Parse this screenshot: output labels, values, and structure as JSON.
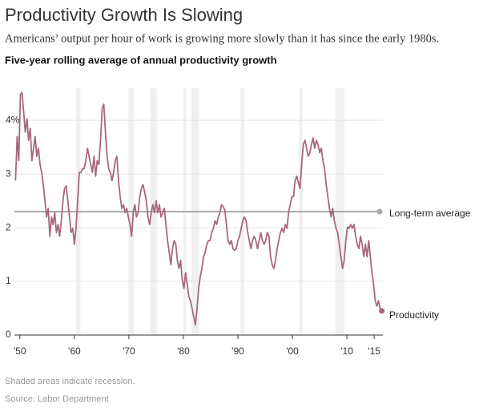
{
  "chart_data": {
    "type": "line",
    "title": "Productivity Growth Is Slowing",
    "subtitle": "Americans’ output per hour of work is growing more slowly than it has since the early 1980s.",
    "chart_label": "Five-year rolling average of annual productivity growth",
    "note": "Shaded areas indicate recession.",
    "source": "Source: Labor Department",
    "xlim": [
      1949,
      2016.6
    ],
    "ylim": [
      0,
      4.6
    ],
    "xticks": [
      {
        "value": 1950,
        "label": "'50"
      },
      {
        "value": 1960,
        "label": "'60"
      },
      {
        "value": 1970,
        "label": "'70"
      },
      {
        "value": 1980,
        "label": "'80"
      },
      {
        "value": 1990,
        "label": "'90"
      },
      {
        "value": 2000,
        "label": "'00"
      },
      {
        "value": 2010,
        "label": "'10"
      },
      {
        "value": 2015,
        "label": "'15"
      }
    ],
    "yticks": [
      0,
      1,
      2,
      3,
      {
        "value": 4,
        "label": "4%"
      }
    ],
    "grid": true,
    "recessions": [
      [
        1960.3,
        1961.1
      ],
      [
        1969.9,
        1970.9
      ],
      [
        1973.9,
        1975.2
      ],
      [
        1980,
        1980.5
      ],
      [
        1981.5,
        1982.9
      ],
      [
        1990.5,
        1991.2
      ],
      [
        2001.2,
        2001.9
      ],
      [
        2007.9,
        2009.5
      ]
    ],
    "reference_line": {
      "label": "Long-term average",
      "value": 2.3,
      "color": "#aaaaaa"
    },
    "x": [
      1949.2,
      1949.5,
      1949.8,
      1950.1,
      1950.4,
      1950.7,
      1951,
      1951.3,
      1951.6,
      1951.9,
      1952.2,
      1952.5,
      1952.8,
      1953.1,
      1953.4,
      1953.7,
      1954,
      1954.3,
      1954.6,
      1954.9,
      1955.2,
      1955.5,
      1955.8,
      1956.1,
      1956.4,
      1956.7,
      1957,
      1957.3,
      1957.6,
      1957.9,
      1958.2,
      1958.5,
      1958.8,
      1959.1,
      1959.4,
      1959.7,
      1960,
      1960.3,
      1960.6,
      1960.9,
      1961.2,
      1961.5,
      1961.8,
      1962.1,
      1962.4,
      1962.7,
      1963,
      1963.3,
      1963.6,
      1963.9,
      1964.2,
      1964.5,
      1964.8,
      1965.1,
      1965.4,
      1965.7,
      1966,
      1966.3,
      1966.6,
      1966.9,
      1967.2,
      1967.5,
      1967.8,
      1968.1,
      1968.4,
      1968.7,
      1969,
      1969.3,
      1969.6,
      1969.9,
      1970.2,
      1970.5,
      1970.8,
      1971.1,
      1971.4,
      1971.7,
      1972,
      1972.3,
      1972.6,
      1972.9,
      1973.2,
      1973.5,
      1973.8,
      1974.1,
      1974.4,
      1974.7,
      1975,
      1975.3,
      1975.6,
      1975.9,
      1976.2,
      1976.5,
      1976.8,
      1977.1,
      1977.4,
      1977.7,
      1978,
      1978.3,
      1978.6,
      1978.9,
      1979.2,
      1979.5,
      1979.8,
      1980.1,
      1980.4,
      1980.7,
      1981,
      1981.3,
      1981.6,
      1981.9,
      1982.2,
      1982.5,
      1982.8,
      1983.1,
      1983.4,
      1983.7,
      1984,
      1984.3,
      1984.6,
      1984.9,
      1985.2,
      1985.5,
      1985.8,
      1986.1,
      1986.4,
      1986.7,
      1987,
      1987.3,
      1987.6,
      1987.9,
      1988.2,
      1988.5,
      1988.8,
      1989.1,
      1989.4,
      1989.7,
      1990,
      1990.3,
      1990.6,
      1990.9,
      1991.2,
      1991.5,
      1991.8,
      1992.1,
      1992.4,
      1992.7,
      1993,
      1993.3,
      1993.6,
      1993.9,
      1994.2,
      1994.5,
      1994.8,
      1995.1,
      1995.4,
      1995.7,
      1996,
      1996.3,
      1996.6,
      1996.9,
      1997.2,
      1997.5,
      1997.8,
      1998.1,
      1998.4,
      1998.7,
      1999,
      1999.3,
      1999.6,
      1999.9,
      2000.2,
      2000.5,
      2000.8,
      2001.1,
      2001.4,
      2001.7,
      2002,
      2002.3,
      2002.6,
      2002.9,
      2003.2,
      2003.5,
      2003.8,
      2004.1,
      2004.4,
      2004.7,
      2005,
      2005.3,
      2005.6,
      2005.9,
      2006.2,
      2006.5,
      2006.8,
      2007.1,
      2007.4,
      2007.7,
      2008,
      2008.3,
      2008.6,
      2008.9,
      2009.2,
      2009.5,
      2009.8,
      2010.1,
      2010.4,
      2010.7,
      2011,
      2011.3,
      2011.6,
      2011.9,
      2012.2,
      2012.5,
      2012.8,
      2013.1,
      2013.4,
      2013.7,
      2014,
      2014.3,
      2014.6,
      2014.9,
      2015.2,
      2015.5,
      2015.8,
      2016.1,
      2016.4
    ],
    "series": [
      {
        "name": "Productivity",
        "color": "#a8677f",
        "values": [
          2.88,
          3.7,
          3.25,
          4.48,
          4.52,
          4.15,
          3.78,
          4.03,
          3.63,
          3.85,
          3.25,
          3.48,
          3.7,
          3.33,
          3.48,
          3.18,
          3.03,
          2.8,
          2.5,
          2.2,
          2.36,
          1.84,
          2.2,
          2.06,
          2.28,
          1.91,
          2.06,
          1.84,
          2.13,
          2.5,
          2.73,
          2.78,
          2.5,
          2.2,
          1.91,
          1.99,
          1.69,
          1.99,
          2.5,
          3.03,
          3.03,
          3.1,
          3.1,
          3.25,
          3.48,
          3.33,
          3.18,
          3.03,
          3.33,
          2.96,
          3.25,
          3.18,
          3.63,
          4.22,
          4.3,
          3.78,
          3.33,
          3.1,
          3.03,
          2.88,
          3.03,
          3.25,
          3.33,
          2.88,
          2.58,
          2.36,
          2.43,
          2.28,
          2.36,
          2.2,
          2.06,
          1.84,
          2.28,
          2.43,
          2.2,
          2.28,
          2.58,
          2.73,
          2.8,
          2.66,
          2.5,
          2.2,
          2.06,
          2.28,
          2.43,
          2.28,
          2.5,
          2.28,
          2.43,
          2.2,
          2.28,
          2.36,
          2.06,
          1.76,
          1.54,
          1.31,
          1.61,
          1.76,
          1.69,
          1.39,
          1.24,
          1.39,
          1.01,
          0.87,
          1.16,
          0.94,
          0.72,
          0.64,
          0.49,
          0.34,
          0.19,
          0.49,
          0.87,
          1.09,
          1.24,
          1.46,
          1.54,
          1.69,
          1.76,
          1.76,
          1.91,
          1.99,
          2.13,
          2.06,
          2.2,
          2.28,
          2.43,
          2.39,
          2.33,
          2.06,
          1.76,
          1.69,
          1.76,
          1.61,
          1.58,
          1.61,
          1.76,
          1.84,
          1.99,
          2.13,
          2.2,
          2.13,
          1.91,
          1.76,
          1.61,
          1.76,
          1.84,
          1.76,
          1.61,
          1.76,
          1.91,
          1.76,
          1.69,
          1.76,
          1.91,
          1.84,
          1.46,
          1.31,
          1.24,
          1.39,
          1.61,
          1.76,
          1.91,
          1.99,
          1.91,
          2.06,
          1.99,
          2.28,
          2.43,
          2.58,
          2.58,
          2.88,
          2.96,
          2.84,
          2.73,
          3.18,
          3.55,
          3.63,
          3.48,
          3.33,
          3.4,
          3.55,
          3.67,
          3.48,
          3.63,
          3.55,
          3.4,
          3.48,
          3.25,
          3.1,
          2.8,
          2.58,
          2.36,
          2.2,
          2.36,
          2.13,
          1.99,
          1.91,
          1.69,
          1.46,
          1.24,
          1.39,
          1.76,
          2.01,
          1.99,
          2.06,
          1.99,
          2.06,
          1.84,
          1.69,
          1.61,
          1.84,
          1.69,
          1.46,
          1.69,
          1.46,
          1.76,
          1.46,
          1.16,
          0.94,
          0.64,
          0.54,
          0.64,
          0.49,
          0.45
        ]
      }
    ]
  }
}
